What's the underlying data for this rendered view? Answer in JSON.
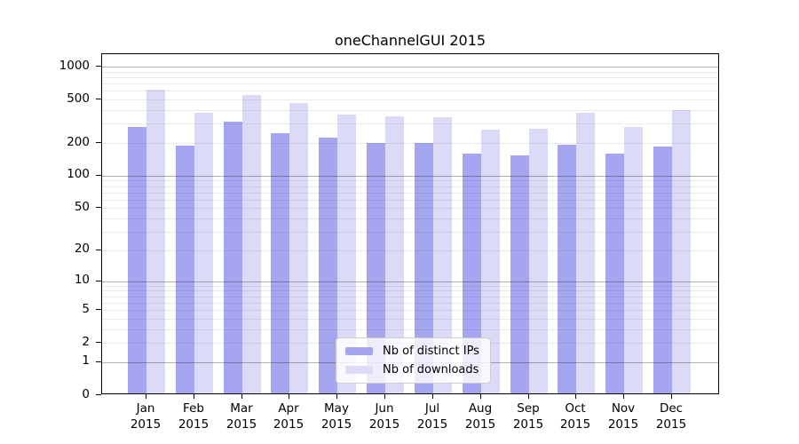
{
  "title": "oneChannelGUI 2015",
  "colors": {
    "distinct_ips": "#a6a6f0",
    "downloads": "#dbdbf7",
    "grid_minor": "rgba(0,0,0,0.08)",
    "grid_major": "rgba(0,0,0,0.30)",
    "axis": "#000000",
    "legend_border": "#cccccc"
  },
  "legend": {
    "items": [
      {
        "label": "Nb of distinct IPs",
        "color_key": "distinct_ips"
      },
      {
        "label": "Nb of downloads",
        "color_key": "downloads"
      }
    ]
  },
  "chart_data": {
    "type": "bar",
    "title": "oneChannelGUI 2015",
    "categories": [
      "Jan 2015",
      "Feb 2015",
      "Mar 2015",
      "Apr 2015",
      "May 2015",
      "Jun 2015",
      "Jul 2015",
      "Aug 2015",
      "Sep 2015",
      "Oct 2015",
      "Nov 2015",
      "Dec 2015"
    ],
    "series": [
      {
        "name": "Nb of distinct IPs",
        "color_key": "distinct_ips",
        "values": [
          270,
          183,
          300,
          237,
          214,
          194,
          192,
          154,
          147,
          185,
          154,
          178
        ]
      },
      {
        "name": "Nb of downloads",
        "color_key": "downloads",
        "values": [
          588,
          366,
          526,
          451,
          351,
          340,
          332,
          254,
          260,
          362,
          268,
          385
        ]
      }
    ],
    "xlabel": "",
    "ylabel": "",
    "yscale": "log1p",
    "ylim": [
      0,
      1300
    ],
    "yticks": [
      0,
      1,
      2,
      5,
      10,
      20,
      50,
      100,
      200,
      500,
      1000
    ],
    "grid": "horizontal",
    "grid_major_at": [
      1,
      10,
      100,
      1000
    ],
    "legend_position": "lower-center-inside"
  }
}
